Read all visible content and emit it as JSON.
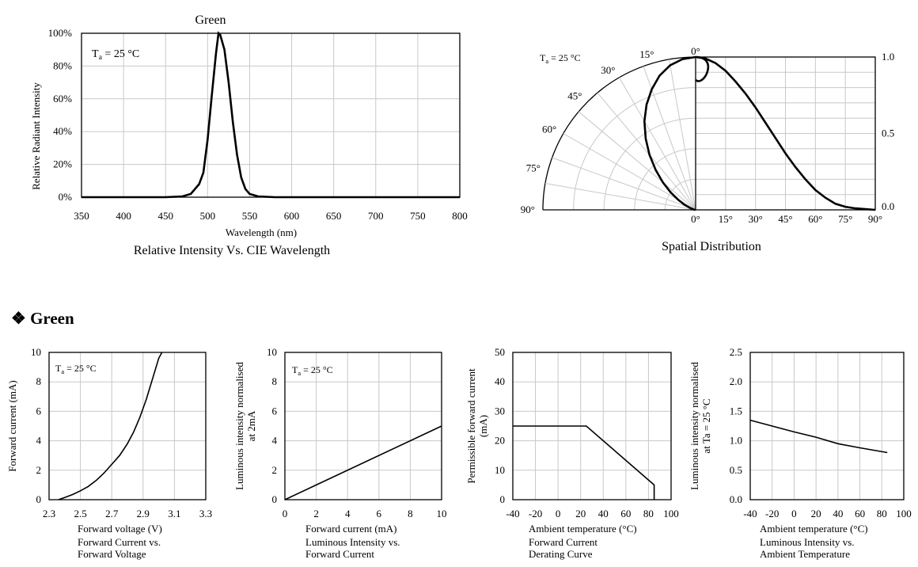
{
  "section": {
    "bullet": "❖",
    "title": "Green"
  },
  "chart_data": [
    {
      "id": "spectrum",
      "type": "line",
      "title": "Relative Intensity Vs. CIE Wavelength",
      "series_label": "Green",
      "annotation": "Ta = 25 °C",
      "xlabel": "Wavelength (nm)",
      "ylabel": "Relative  Radiant Intensity",
      "xlim": [
        350,
        800
      ],
      "ylim": [
        0,
        100
      ],
      "xticks": [
        "350",
        "400",
        "450",
        "500",
        "550",
        "600",
        "650",
        "700",
        "750",
        "800"
      ],
      "yticks": [
        "0%",
        "20%",
        "40%",
        "60%",
        "80%",
        "100%"
      ],
      "x": [
        350,
        450,
        470,
        480,
        490,
        495,
        500,
        505,
        510,
        513,
        515,
        520,
        525,
        530,
        535,
        540,
        545,
        550,
        560,
        580,
        800
      ],
      "y": [
        0,
        0,
        0.5,
        2,
        8,
        15,
        35,
        62,
        88,
        100,
        99,
        90,
        70,
        46,
        26,
        12,
        5,
        2,
        0.5,
        0,
        0
      ]
    },
    {
      "id": "spatial",
      "type": "line",
      "title": "Spatial Distribution",
      "annotation": "Ta = 25 °C",
      "angle_labels": [
        "0°",
        "15°",
        "30°",
        "45°",
        "60°",
        "75°",
        "90°"
      ],
      "xticks": [
        "0°",
        "15°",
        "30°",
        "45°",
        "60°",
        "75°",
        "90°"
      ],
      "yticks": [
        "0.0",
        "0.5",
        "1.0"
      ],
      "xlim": [
        0,
        90
      ],
      "ylim": [
        0,
        1
      ],
      "x": [
        0,
        5,
        10,
        15,
        20,
        25,
        30,
        35,
        40,
        45,
        50,
        55,
        60,
        65,
        70,
        75,
        80,
        85,
        90
      ],
      "y": [
        1.0,
        0.99,
        0.96,
        0.91,
        0.84,
        0.76,
        0.67,
        0.57,
        0.47,
        0.37,
        0.28,
        0.2,
        0.13,
        0.08,
        0.04,
        0.02,
        0.01,
        0.005,
        0.0
      ]
    },
    {
      "id": "iv",
      "type": "line",
      "title": "Forward Current vs.\nForward Voltage",
      "annotation": "Ta = 25 °C",
      "xlabel": "Forward voltage (V)",
      "ylabel": "Forward current (mA)",
      "xlim": [
        2.3,
        3.3
      ],
      "ylim": [
        0,
        10
      ],
      "xticks": [
        "2.3",
        "2.5",
        "2.7",
        "2.9",
        "3.1",
        "3.3"
      ],
      "yticks": [
        "0",
        "2",
        "4",
        "6",
        "8",
        "10"
      ],
      "x": [
        2.36,
        2.4,
        2.45,
        2.5,
        2.55,
        2.6,
        2.65,
        2.7,
        2.75,
        2.8,
        2.84,
        2.88,
        2.92,
        2.96,
        3.0,
        3.02
      ],
      "y": [
        0,
        0.15,
        0.35,
        0.6,
        0.9,
        1.3,
        1.8,
        2.4,
        3.0,
        3.8,
        4.6,
        5.6,
        6.8,
        8.2,
        9.6,
        10
      ]
    },
    {
      "id": "lumcurrent",
      "type": "line",
      "title": "Luminous Intensity vs.\nForward Current",
      "annotation": "Ta = 25 °C",
      "xlabel": "Forward current (mA)",
      "ylabel": "Luminous intensity normalised\nat 2mA",
      "xlim": [
        0,
        10
      ],
      "ylim": [
        0,
        10
      ],
      "xticks": [
        "0",
        "2",
        "4",
        "6",
        "8",
        "10"
      ],
      "yticks": [
        "0",
        "2",
        "4",
        "6",
        "8",
        "10"
      ],
      "x": [
        0,
        2,
        10
      ],
      "y": [
        0,
        1,
        5
      ]
    },
    {
      "id": "derating",
      "type": "line",
      "title": "Forward Current\nDerating  Curve",
      "xlabel": "Ambient temperature (°C)",
      "ylabel": "Permissible forward current\n(mA)",
      "xlim": [
        -40,
        100
      ],
      "ylim": [
        0,
        50
      ],
      "xticks": [
        "-40",
        "-20",
        "0",
        "20",
        "40",
        "60",
        "80",
        "100"
      ],
      "yticks": [
        "0",
        "10",
        "20",
        "30",
        "40",
        "50"
      ],
      "x": [
        -40,
        25,
        85,
        85
      ],
      "y": [
        25,
        25,
        5,
        0
      ]
    },
    {
      "id": "lumtemp",
      "type": "line",
      "title": "Luminous Intensity vs.\nAmbient Temperature",
      "xlabel": "Ambient temperature (°C)",
      "ylabel": "Luminous intensity normalised\nat Ta = 25 °C",
      "xlim": [
        -40,
        100
      ],
      "ylim": [
        0,
        2.5
      ],
      "xticks": [
        "-40",
        "-20",
        "0",
        "20",
        "40",
        "60",
        "80",
        "100"
      ],
      "yticks": [
        "0.0",
        "0.5",
        "1.0",
        "1.5",
        "2.0",
        "2.5"
      ],
      "x": [
        -40,
        -20,
        0,
        20,
        40,
        60,
        85
      ],
      "y": [
        1.35,
        1.25,
        1.15,
        1.06,
        0.95,
        0.88,
        0.8
      ]
    }
  ]
}
